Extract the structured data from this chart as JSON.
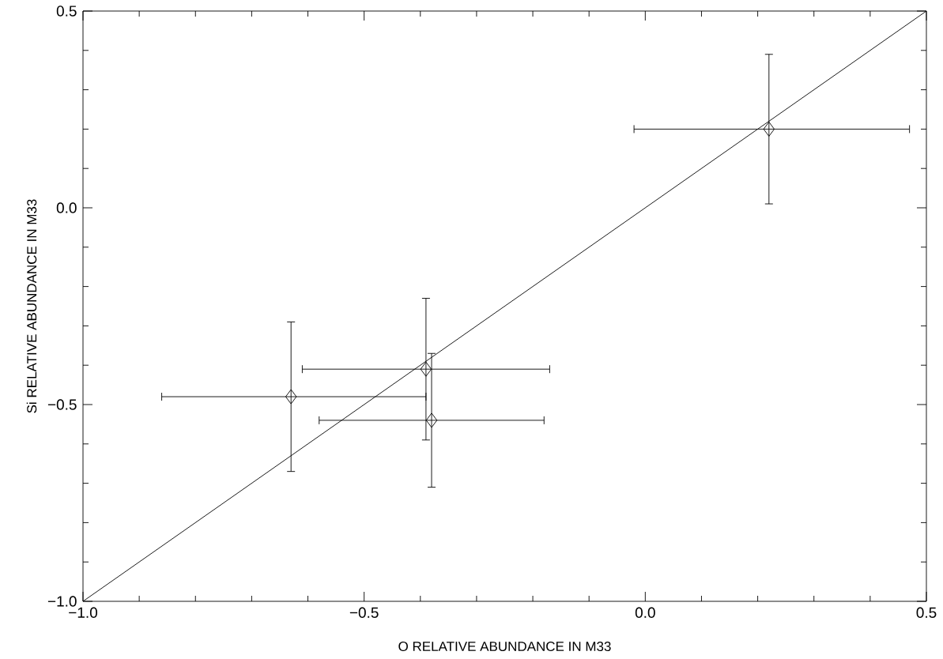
{
  "chart_data": {
    "type": "scatter",
    "xlabel": "O RELATIVE ABUNDANCE IN M33",
    "ylabel": "Si RELATIVE ABUNDANCE IN M33",
    "xlim": [
      -1.0,
      0.5
    ],
    "ylim": [
      -1.0,
      0.5
    ],
    "xticks": [
      {
        "value": -1.0,
        "label": "−1.0"
      },
      {
        "value": -0.9,
        "label": null
      },
      {
        "value": -0.8,
        "label": null
      },
      {
        "value": -0.7,
        "label": null
      },
      {
        "value": -0.6,
        "label": null
      },
      {
        "value": -0.5,
        "label": "−0.5"
      },
      {
        "value": -0.4,
        "label": null
      },
      {
        "value": -0.3,
        "label": null
      },
      {
        "value": -0.2,
        "label": null
      },
      {
        "value": -0.1,
        "label": null
      },
      {
        "value": 0.0,
        "label": "0.0"
      },
      {
        "value": 0.1,
        "label": null
      },
      {
        "value": 0.2,
        "label": null
      },
      {
        "value": 0.3,
        "label": null
      },
      {
        "value": 0.4,
        "label": null
      },
      {
        "value": 0.5,
        "label": "0.5"
      }
    ],
    "yticks": [
      {
        "value": -1.0,
        "label": "−1.0"
      },
      {
        "value": -0.9,
        "label": null
      },
      {
        "value": -0.8,
        "label": null
      },
      {
        "value": -0.7,
        "label": null
      },
      {
        "value": -0.6,
        "label": null
      },
      {
        "value": -0.5,
        "label": "−0.5"
      },
      {
        "value": -0.4,
        "label": null
      },
      {
        "value": -0.3,
        "label": null
      },
      {
        "value": -0.2,
        "label": null
      },
      {
        "value": -0.1,
        "label": null
      },
      {
        "value": 0.0,
        "label": "0.0"
      },
      {
        "value": 0.1,
        "label": null
      },
      {
        "value": 0.2,
        "label": null
      },
      {
        "value": 0.3,
        "label": null
      },
      {
        "value": 0.4,
        "label": null
      },
      {
        "value": 0.5,
        "label": "0.5"
      }
    ],
    "series": [
      {
        "marker": "diamond",
        "color": "#000000",
        "x": [
          0.22,
          -0.63,
          -0.39,
          -0.38
        ],
        "values": [
          0.2,
          -0.48,
          -0.41,
          -0.54
        ],
        "xerrors": [
          [
            -0.02,
            0.47
          ],
          [
            -0.86,
            -0.39
          ],
          [
            -0.61,
            -0.17
          ],
          [
            -0.58,
            -0.18
          ]
        ],
        "errors": [
          [
            0.01,
            0.39
          ],
          [
            -0.67,
            -0.29
          ],
          [
            -0.59,
            -0.23
          ],
          [
            -0.71,
            -0.37
          ]
        ]
      },
      {
        "type": "line",
        "marker": "none",
        "color": "#000000",
        "x": [
          -1.0,
          0.5
        ],
        "values": [
          -1.0,
          0.5
        ]
      }
    ]
  }
}
